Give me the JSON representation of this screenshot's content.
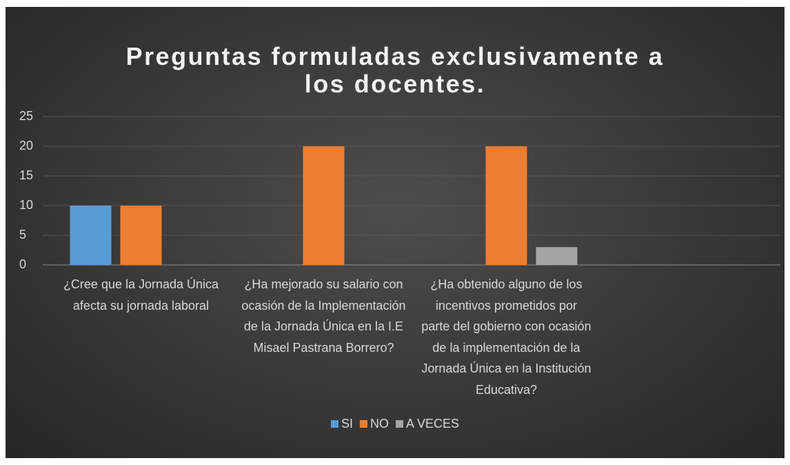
{
  "chart_data": {
    "type": "bar",
    "title": "Preguntas formuladas exclusivamente a los docentes.",
    "categories": [
      "¿Cree que la Jornada Única afecta su jornada laboral",
      "¿Ha mejorado su salario con ocasión de la Implementación de la Jornada Única en la I.E Misael Pastrana Borrero?",
      "¿Ha obtenido alguno de los incentivos prometidos por parte del gobierno con ocasión de la implementación de la Jornada Única en la Institución Educativa?",
      null
    ],
    "series": [
      {
        "name": "SI",
        "color": "#5b9bd5",
        "values": [
          10,
          null,
          null,
          null
        ]
      },
      {
        "name": "NO",
        "color": "#ed7d31",
        "values": [
          10,
          20,
          20,
          null
        ]
      },
      {
        "name": "A VECES",
        "color": "#a5a5a5",
        "values": [
          null,
          null,
          3,
          null
        ]
      }
    ],
    "ylim": [
      0,
      25
    ],
    "yticks": [
      0,
      5,
      10,
      15,
      20,
      25
    ],
    "grid": true,
    "legend": "bottom"
  }
}
